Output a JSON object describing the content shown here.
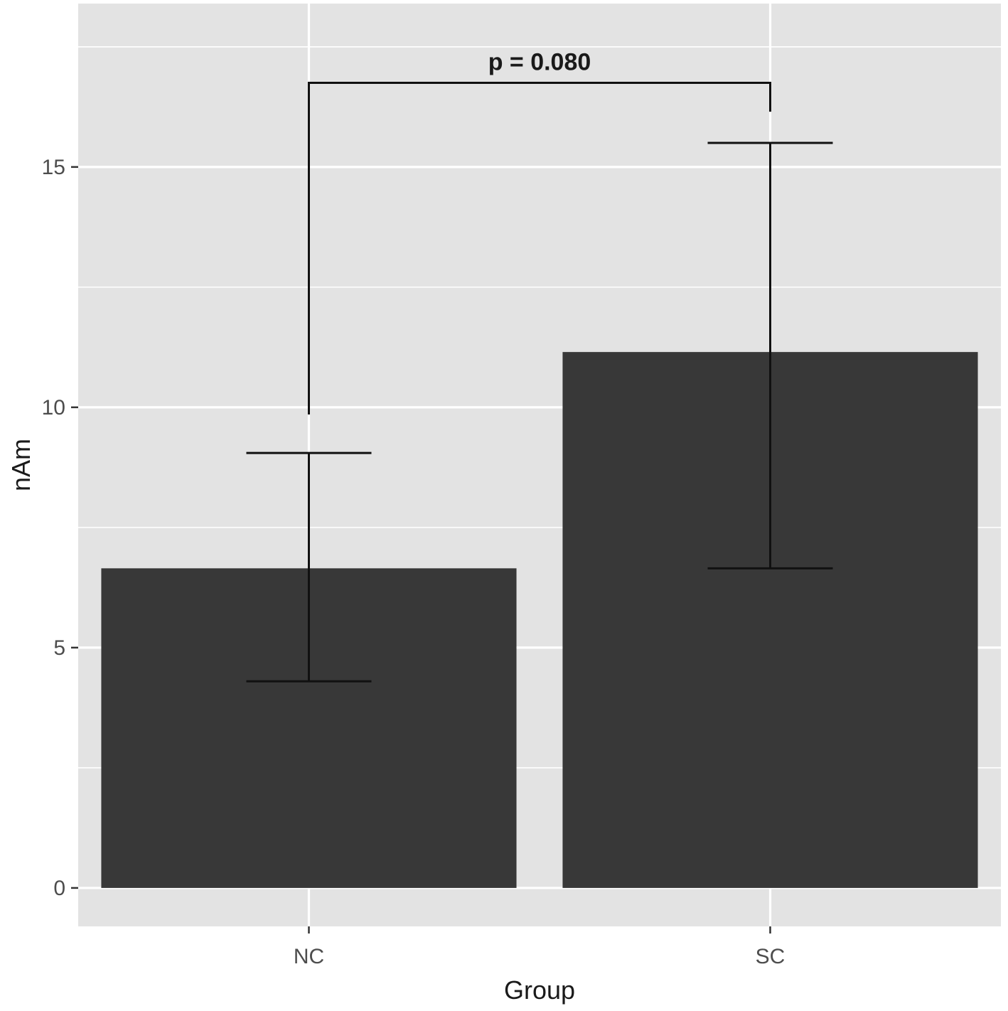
{
  "chart_data": {
    "type": "bar",
    "categories": [
      "NC",
      "SC"
    ],
    "values": [
      6.65,
      11.15
    ],
    "error_low": [
      4.3,
      6.65
    ],
    "error_high": [
      9.05,
      15.5
    ],
    "title": "",
    "xlabel": "Group",
    "ylabel": "nAm",
    "ylim": [
      -0.8,
      18.4
    ],
    "yticks": [
      "0",
      "5",
      "10",
      "15"
    ],
    "ytick_values": [
      0,
      5,
      10,
      15
    ],
    "grid": true,
    "annotation": {
      "text": "p = 0.080",
      "from": "NC",
      "to": "SC",
      "y_bracket": 16.75,
      "y_left_end": 9.85,
      "y_right_end": 16.15
    },
    "colors": {
      "panel": "#e3e3e3",
      "grid": "#ffffff",
      "bar": "#383838",
      "error": "#111111",
      "text": "#4d4d4d"
    }
  }
}
